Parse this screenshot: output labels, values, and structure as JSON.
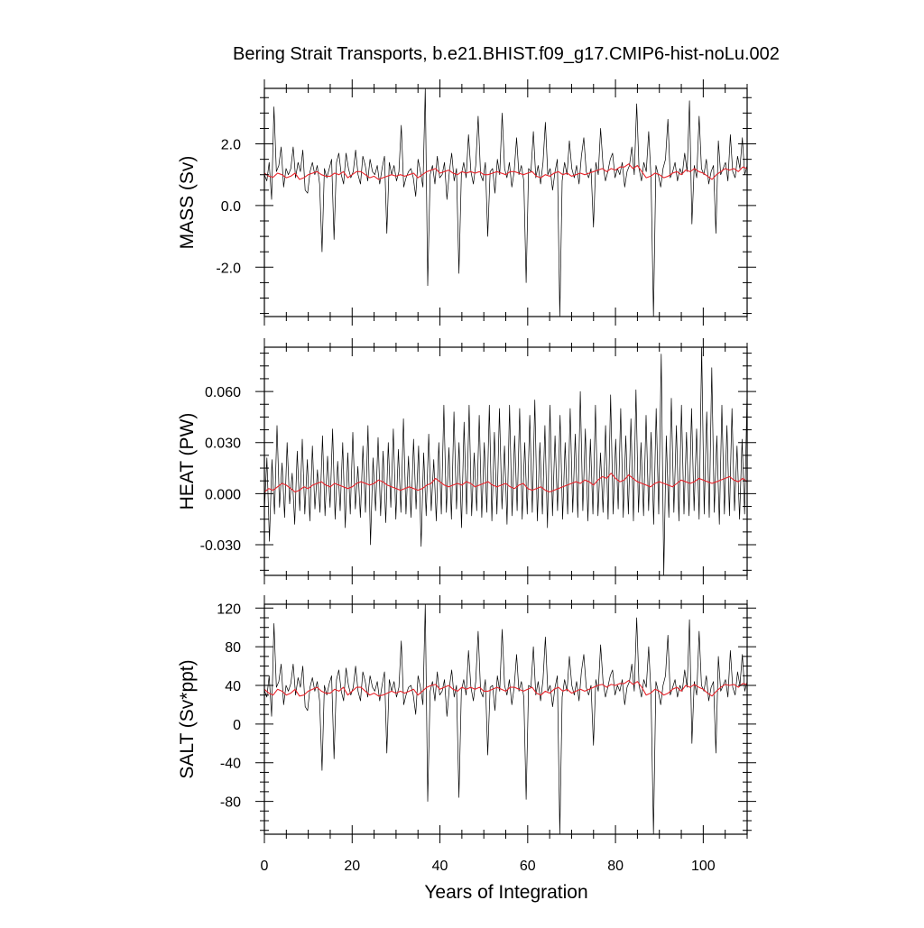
{
  "title": "Bering Strait Transports, b.e21.BHIST.f09_g17.CMIP6-hist-noLu.002",
  "xlabel": "Years of Integration",
  "colors": {
    "monthly": "#000000",
    "annual": "#e8232a",
    "frame": "#000000"
  },
  "chart_data": [
    {
      "type": "line",
      "ylabel": "MASS (Sv)",
      "xlim": [
        0,
        110
      ],
      "ylim": [
        -3.6,
        3.8
      ],
      "yticks": [
        2.0,
        0.0,
        -2.0
      ],
      "ytick_labels": [
        "2.0",
        "0.0",
        "-2.0"
      ],
      "xticks": [
        0,
        20,
        40,
        60,
        80,
        100
      ],
      "xtick_labels": [
        "0",
        "20",
        "40",
        "60",
        "80",
        "100"
      ],
      "series": [
        {
          "style": "monthly",
          "x_range": [
            0,
            110
          ],
          "values": [
            1.0,
            0.8,
            1.4,
            0.2,
            3.2,
            1.1,
            1.3,
            1.9,
            0.6,
            1.2,
            1.0,
            1.2,
            1.9,
            0.9,
            1.4,
            1.1,
            1.8,
            0.5,
            0.4,
            1.1,
            1.4,
            1.0,
            1.3,
            0.7,
            -1.5,
            1.2,
            0.9,
            1.2,
            1.5,
            -1.1,
            1.4,
            1.7,
            1.0,
            0.7,
            1.7,
            1.2,
            0.9,
            1.1,
            1.8,
            1.0,
            0.7,
            1.6,
            1.3,
            0.8,
            1.5,
            1.1,
            1.0,
            1.3,
            0.7,
            1.2,
            1.6,
            -0.9,
            1.4,
            1.0,
            1.3,
            0.8,
            1.1,
            2.6,
            0.6,
            0.9,
            1.1,
            1.2,
            0.9,
            0.3,
            1.5,
            1.1,
            0.6,
            3.8,
            -2.6,
            1.0,
            1.3,
            0.7,
            1.6,
            0.9,
            1.0,
            1.4,
            0.2,
            1.1,
            1.7,
            0.8,
            1.2,
            -2.2,
            1.0,
            1.4,
            0.9,
            2.3,
            1.1,
            0.7,
            1.3,
            2.9,
            1.0,
            0.8,
            1.4,
            -1.0,
            1.1,
            1.2,
            0.4,
            1.5,
            1.0,
            3.0,
            1.2,
            0.9,
            1.4,
            0.6,
            1.1,
            2.2,
            1.0,
            1.3,
            0.8,
            -2.5,
            1.2,
            1.1,
            2.4,
            0.9,
            1.3,
            0.7,
            1.4,
            2.7,
            1.0,
            1.2,
            0.5,
            1.1,
            1.5,
            -3.6,
            0.8,
            1.4,
            1.0,
            2.1,
            1.2,
            0.9,
            1.3,
            0.7,
            1.6,
            2.2,
            1.1,
            0.9,
            1.2,
            -0.7,
            1.4,
            1.0,
            2.5,
            1.3,
            0.8,
            1.1,
            1.5,
            1.7,
            0.9,
            1.2,
            1.0,
            1.4,
            0.6,
            1.1,
            1.3,
            1.9,
            1.0,
            3.3,
            1.2,
            0.8,
            1.4,
            1.1,
            2.4,
            0.9,
            -3.6,
            1.3,
            1.0,
            0.6,
            1.2,
            1.5,
            2.8,
            0.9,
            1.1,
            1.4,
            0.8,
            1.2,
            1.0,
            1.7,
            1.1,
            3.4,
            -0.6,
            1.3,
            0.9,
            2.9,
            1.2,
            1.0,
            1.5,
            0.7,
            1.1,
            1.3,
            -0.9,
            2.1,
            1.0,
            1.2,
            1.4,
            0.8,
            2.3,
            1.1,
            0.9,
            1.6,
            1.2,
            2.2,
            1.0,
            1.3
          ]
        },
        {
          "style": "annual",
          "x_range": [
            0,
            110
          ],
          "values": [
            1.05,
            0.95,
            0.92,
            1.05,
            1.0,
            0.9,
            0.95,
            1.05,
            0.85,
            0.9,
            1.0,
            1.05,
            1.1,
            1.0,
            0.95,
            0.95,
            1.05,
            1.0,
            1.1,
            0.9,
            1.0,
            1.1,
            1.1,
            1.0,
            0.9,
            0.95,
            0.85,
            0.9,
            0.95,
            1.0,
            0.95,
            1.0,
            0.95,
            1.0,
            1.05,
            0.9,
            1.0,
            1.1,
            1.15,
            1.2,
            1.05,
            1.1,
            1.15,
            1.05,
            1.0,
            1.1,
            1.05,
            1.1,
            1.05,
            1.1,
            1.0,
            1.0,
            1.05,
            1.1,
            1.05,
            1.0,
            1.1,
            1.1,
            1.05,
            1.0,
            1.05,
            1.1,
            0.95,
            0.9,
            1.0,
            0.95,
            1.05,
            1.1,
            1.0,
            1.05,
            0.95,
            1.0,
            1.05,
            1.0,
            1.05,
            1.1,
            1.15,
            1.2,
            1.1,
            1.2,
            1.15,
            1.25,
            1.25,
            1.35,
            1.2,
            1.3,
            1.1,
            0.9,
            0.95,
            1.05,
            1.0,
            0.9,
            0.95,
            1.05,
            1.1,
            1.0,
            1.15,
            1.1,
            1.2,
            1.1,
            1.05,
            0.95,
            0.85,
            1.0,
            1.1,
            1.2,
            1.15,
            1.2,
            1.1,
            1.25,
            1.2
          ]
        }
      ]
    },
    {
      "type": "line",
      "ylabel": "HEAT (PW)",
      "xlim": [
        0,
        110
      ],
      "ylim": [
        -0.048,
        0.086
      ],
      "yticks": [
        0.06,
        0.03,
        0.0,
        -0.03
      ],
      "ytick_labels": [
        "0.060",
        "0.030",
        "0.000",
        "-0.030"
      ],
      "xticks": [
        0,
        20,
        40,
        60,
        80,
        100
      ],
      "xtick_labels": [
        "0",
        "20",
        "40",
        "60",
        "80",
        "100"
      ],
      "series": [
        {
          "style": "monthly",
          "x_range": [
            0,
            110
          ],
          "values": [
            -0.01,
            0.021,
            -0.028,
            0.02,
            -0.012,
            0.04,
            -0.008,
            0.018,
            -0.014,
            0.03,
            -0.006,
            0.012,
            -0.018,
            0.025,
            -0.01,
            0.032,
            -0.012,
            0.02,
            -0.016,
            0.028,
            -0.009,
            0.014,
            -0.011,
            0.034,
            -0.013,
            0.022,
            -0.008,
            0.038,
            -0.015,
            0.019,
            -0.01,
            0.03,
            -0.02,
            0.024,
            -0.012,
            0.036,
            -0.009,
            0.016,
            -0.014,
            0.028,
            -0.011,
            0.04,
            -0.03,
            0.021,
            -0.01,
            0.033,
            -0.013,
            0.025,
            -0.017,
            0.03,
            -0.008,
            0.038,
            -0.015,
            0.026,
            -0.011,
            0.044,
            -0.012,
            0.022,
            -0.014,
            0.032,
            -0.009,
            0.028,
            -0.031,
            0.024,
            -0.013,
            0.035,
            -0.01,
            0.02,
            -0.016,
            0.03,
            -0.012,
            0.052,
            -0.011,
            0.027,
            -0.015,
            0.048,
            -0.009,
            0.03,
            -0.02,
            0.042,
            -0.012,
            0.052,
            -0.013,
            0.024,
            -0.01,
            0.046,
            -0.014,
            0.03,
            -0.011,
            0.052,
            -0.016,
            0.036,
            -0.012,
            0.05,
            -0.009,
            0.028,
            -0.018,
            0.052,
            -0.013,
            0.034,
            -0.01,
            0.05,
            -0.015,
            0.03,
            -0.012,
            0.046,
            -0.011,
            0.055,
            -0.016,
            0.03,
            -0.012,
            0.04,
            -0.02,
            0.052,
            -0.013,
            0.034,
            -0.01,
            0.046,
            -0.015,
            0.03,
            -0.012,
            0.05,
            -0.011,
            0.035,
            -0.014,
            0.06,
            -0.01,
            0.038,
            -0.016,
            0.032,
            -0.012,
            0.052,
            -0.013,
            0.024,
            -0.011,
            0.04,
            -0.015,
            0.058,
            -0.012,
            0.032,
            -0.009,
            0.05,
            -0.014,
            0.034,
            -0.012,
            0.044,
            -0.016,
            0.061,
            -0.011,
            0.03,
            -0.013,
            0.046,
            -0.01,
            0.036,
            -0.018,
            0.05,
            -0.012,
            0.082,
            -0.048,
            0.034,
            -0.014,
            0.056,
            -0.011,
            0.04,
            -0.016,
            0.052,
            -0.012,
            0.036,
            -0.013,
            0.05,
            -0.01,
            0.038,
            -0.015,
            0.086,
            -0.012,
            0.048,
            -0.014,
            0.074,
            -0.011,
            0.034,
            -0.018,
            0.052,
            -0.012,
            0.04,
            -0.013,
            0.05,
            -0.01,
            0.028,
            -0.015,
            0.032,
            -0.012,
            0.06
          ]
        },
        {
          "style": "annual",
          "x_range": [
            0,
            110
          ],
          "values": [
            0.001,
            0.003,
            0.002,
            0.004,
            0.006,
            0.005,
            0.003,
            0.001,
            0.002,
            0.004,
            0.003,
            0.005,
            0.006,
            0.007,
            0.005,
            0.004,
            0.006,
            0.005,
            0.004,
            0.003,
            0.004,
            0.006,
            0.007,
            0.006,
            0.005,
            0.006,
            0.008,
            0.007,
            0.005,
            0.004,
            0.003,
            0.002,
            0.003,
            0.004,
            0.003,
            0.002,
            0.003,
            0.005,
            0.006,
            0.009,
            0.007,
            0.005,
            0.004,
            0.005,
            0.006,
            0.005,
            0.007,
            0.006,
            0.004,
            0.005,
            0.006,
            0.007,
            0.005,
            0.004,
            0.005,
            0.006,
            0.004,
            0.003,
            0.005,
            0.006,
            0.003,
            0.002,
            0.003,
            0.004,
            0.002,
            0.001,
            0.002,
            0.003,
            0.004,
            0.005,
            0.006,
            0.007,
            0.006,
            0.008,
            0.007,
            0.005,
            0.008,
            0.01,
            0.009,
            0.012,
            0.009,
            0.007,
            0.008,
            0.011,
            0.009,
            0.007,
            0.006,
            0.005,
            0.004,
            0.006,
            0.007,
            0.006,
            0.005,
            0.004,
            0.006,
            0.008,
            0.007,
            0.006,
            0.007,
            0.009,
            0.008,
            0.007,
            0.006,
            0.007,
            0.008,
            0.009,
            0.01,
            0.008,
            0.007,
            0.009,
            0.007
          ]
        }
      ]
    },
    {
      "type": "line",
      "ylabel": "SALT (Sv*ppt)",
      "xlim": [
        0,
        110
      ],
      "ylim": [
        -114,
        124
      ],
      "yticks": [
        120,
        80,
        40,
        0,
        -40,
        -80
      ],
      "ytick_labels": [
        "120",
        "80",
        "40",
        "0",
        "-40",
        "-80"
      ],
      "xticks": [
        0,
        20,
        40,
        60,
        80,
        100
      ],
      "xtick_labels": [
        "0",
        "20",
        "40",
        "60",
        "80",
        "100"
      ],
      "series": [
        {
          "style": "monthly",
          "x_range": [
            0,
            110
          ],
          "values": [
            35,
            28,
            50,
            8,
            104,
            38,
            44,
            62,
            20,
            40,
            34,
            42,
            62,
            30,
            48,
            38,
            60,
            18,
            14,
            38,
            48,
            34,
            44,
            24,
            -48,
            40,
            30,
            42,
            50,
            -36,
            46,
            56,
            34,
            24,
            58,
            40,
            30,
            38,
            60,
            34,
            24,
            54,
            44,
            28,
            50,
            38,
            34,
            44,
            24,
            40,
            54,
            -30,
            46,
            34,
            44,
            28,
            38,
            86,
            20,
            30,
            38,
            40,
            30,
            10,
            50,
            38,
            20,
            124,
            -80,
            34,
            44,
            24,
            54,
            30,
            34,
            46,
            8,
            38,
            56,
            28,
            40,
            -76,
            34,
            46,
            30,
            76,
            38,
            24,
            44,
            96,
            34,
            28,
            46,
            -32,
            38,
            40,
            14,
            50,
            34,
            98,
            40,
            30,
            46,
            20,
            38,
            72,
            34,
            44,
            28,
            -78,
            40,
            38,
            80,
            30,
            44,
            24,
            46,
            90,
            34,
            40,
            18,
            38,
            50,
            -114,
            28,
            46,
            34,
            70,
            40,
            30,
            44,
            24,
            54,
            72,
            38,
            30,
            40,
            -22,
            46,
            34,
            82,
            44,
            28,
            38,
            50,
            56,
            30,
            40,
            34,
            46,
            20,
            38,
            44,
            62,
            34,
            110,
            40,
            28,
            46,
            38,
            80,
            30,
            -114,
            44,
            34,
            20,
            40,
            50,
            92,
            30,
            38,
            46,
            28,
            40,
            34,
            56,
            38,
            108,
            -20,
            44,
            30,
            96,
            40,
            34,
            50,
            24,
            38,
            44,
            -30,
            70,
            34,
            40,
            46,
            28,
            76,
            38,
            30,
            54,
            40,
            72,
            34,
            44
          ]
        },
        {
          "style": "annual",
          "x_range": [
            0,
            110
          ],
          "values": [
            36,
            32,
            30,
            36,
            34,
            30,
            32,
            36,
            29,
            30,
            34,
            36,
            38,
            34,
            32,
            32,
            36,
            34,
            38,
            30,
            34,
            38,
            38,
            34,
            30,
            32,
            29,
            30,
            32,
            34,
            32,
            34,
            32,
            34,
            36,
            30,
            34,
            38,
            40,
            41,
            36,
            38,
            40,
            36,
            34,
            38,
            36,
            38,
            36,
            38,
            34,
            34,
            36,
            38,
            36,
            34,
            38,
            38,
            36,
            34,
            36,
            38,
            32,
            30,
            34,
            32,
            36,
            38,
            34,
            36,
            32,
            34,
            36,
            34,
            36,
            38,
            40,
            41,
            38,
            41,
            40,
            42,
            42,
            45,
            41,
            44,
            38,
            30,
            32,
            36,
            34,
            30,
            32,
            36,
            38,
            34,
            40,
            38,
            41,
            38,
            36,
            32,
            29,
            34,
            38,
            41,
            40,
            41,
            38,
            42,
            41
          ]
        }
      ]
    }
  ]
}
